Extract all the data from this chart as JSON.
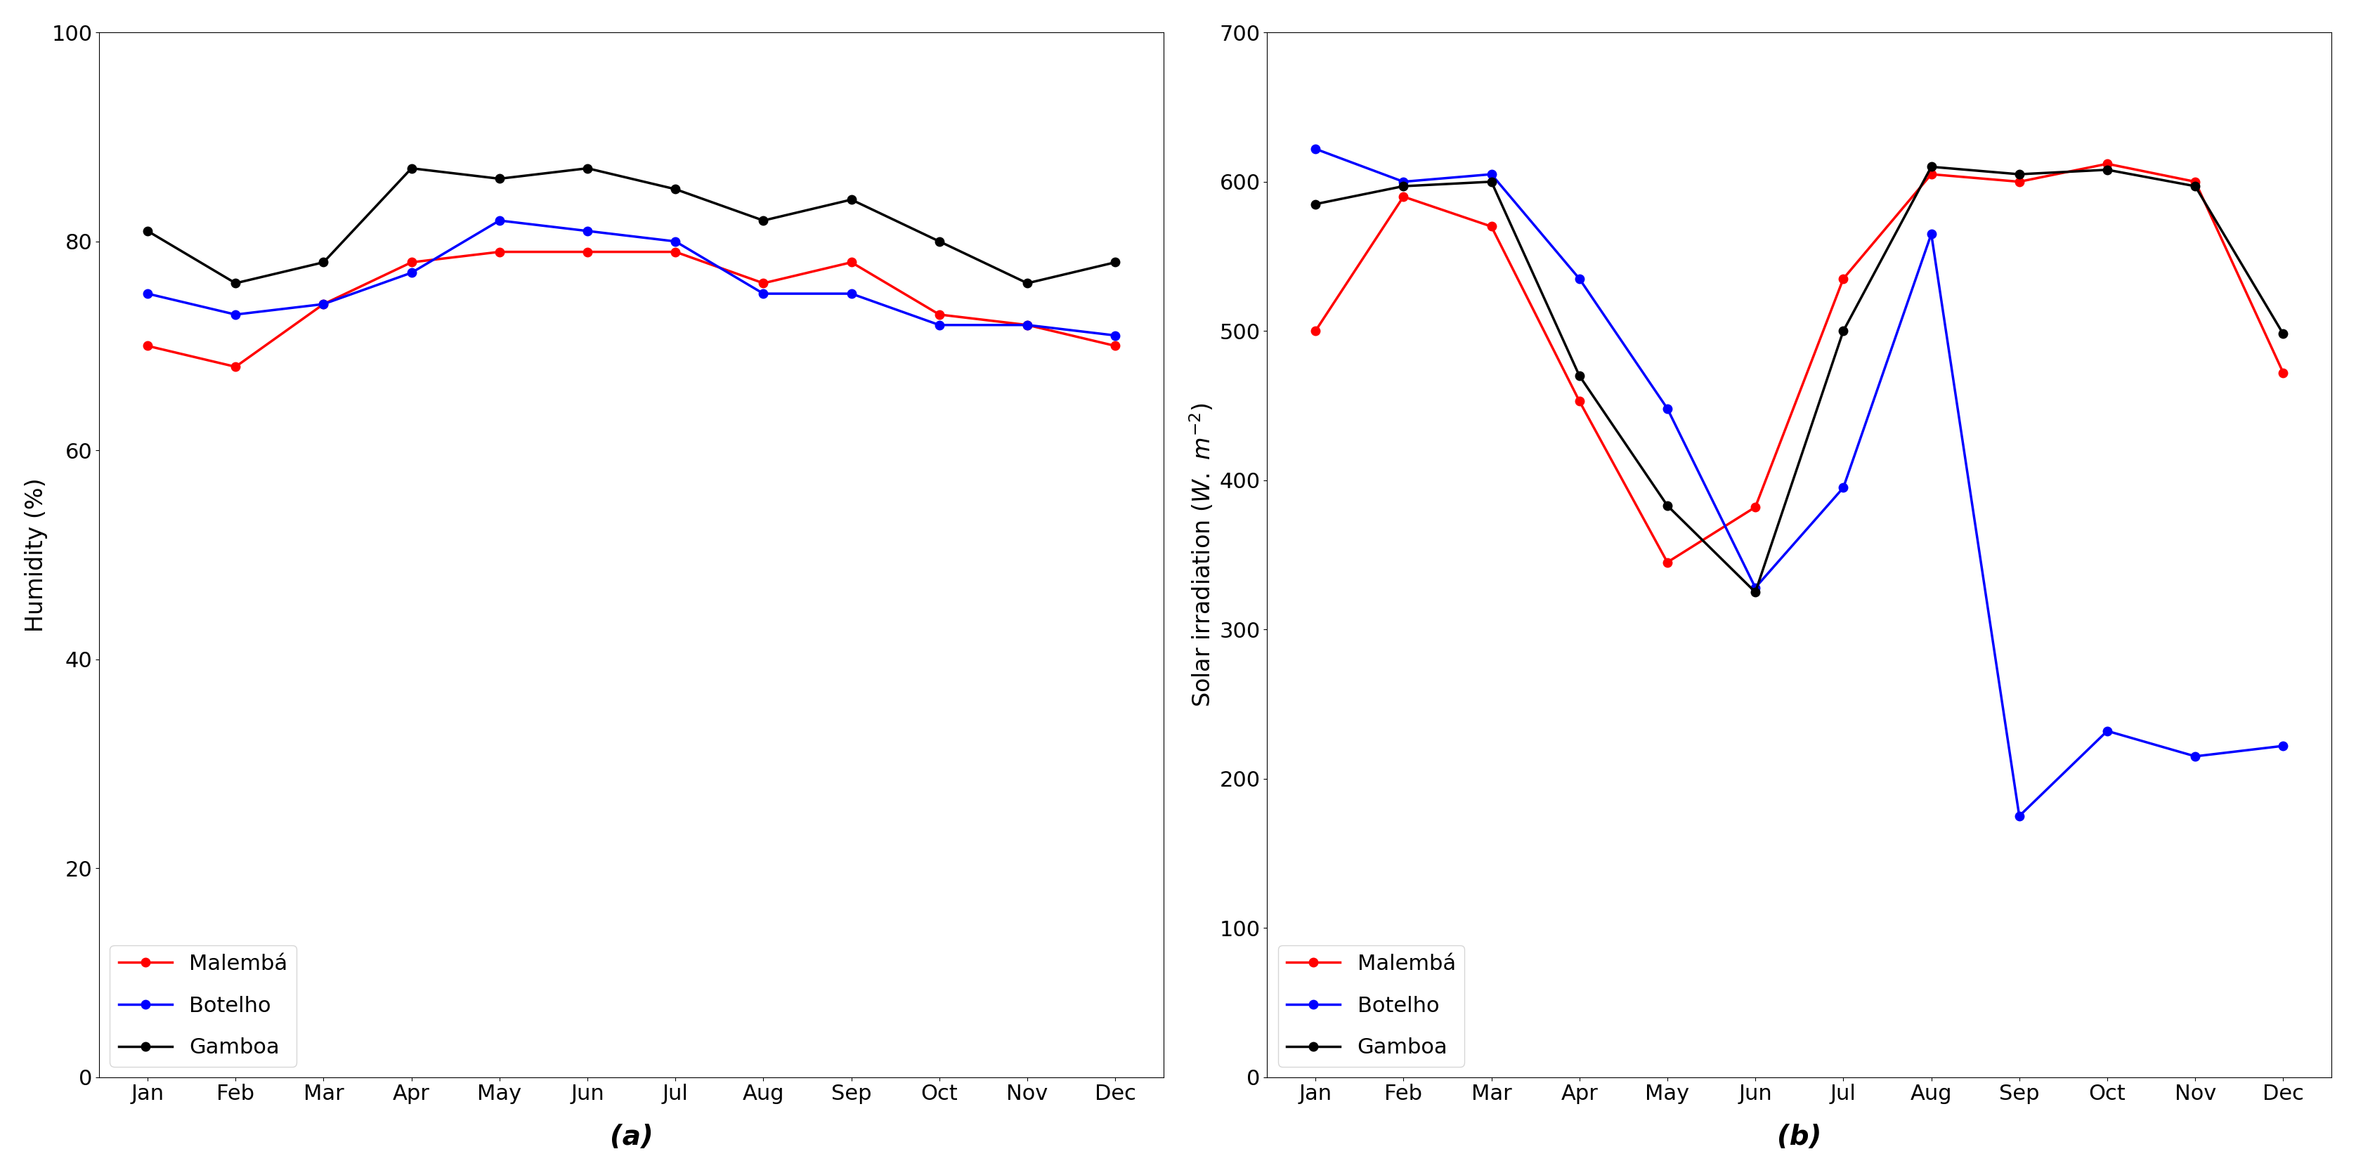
{
  "months": [
    "Jan",
    "Feb",
    "Mar",
    "Apr",
    "May",
    "Jun",
    "Jul",
    "Aug",
    "Sep",
    "Oct",
    "Nov",
    "Dec"
  ],
  "humidity": {
    "Malembá": [
      70,
      68,
      74,
      78,
      79,
      79,
      79,
      76,
      78,
      73,
      72,
      70
    ],
    "Botelho": [
      75,
      73,
      74,
      77,
      82,
      81,
      80,
      75,
      75,
      72,
      72,
      71
    ],
    "Gamboa": [
      81,
      76,
      78,
      87,
      86,
      87,
      85,
      82,
      84,
      80,
      76,
      78
    ]
  },
  "solar": {
    "Malembá": [
      500,
      590,
      570,
      453,
      345,
      382,
      535,
      605,
      600,
      612,
      600,
      472
    ],
    "Botelho": [
      622,
      600,
      605,
      535,
      448,
      328,
      395,
      565,
      175,
      232,
      215,
      222
    ],
    "Gamboa": [
      585,
      597,
      600,
      470,
      383,
      325,
      500,
      610,
      605,
      608,
      597,
      498
    ]
  },
  "colors": {
    "Malembá": "#ff0000",
    "Botelho": "#0000ff",
    "Gamboa": "#000000"
  },
  "humidity_ylabel": "Humidity (%)",
  "solar_ylabel": "Solar irradiation $(W.\\ m^{-2})$",
  "humidity_ylim": [
    0,
    100
  ],
  "solar_ylim": [
    0,
    700
  ],
  "humidity_yticks": [
    0,
    20,
    40,
    60,
    80,
    100
  ],
  "solar_yticks": [
    0,
    100,
    200,
    300,
    400,
    500,
    600,
    700
  ],
  "label_a": "(a)",
  "label_b": "(b)",
  "legend_labels": [
    "Malembá",
    "Botelho",
    "Gamboa"
  ],
  "marker": "o",
  "linewidth": 2.5,
  "markersize": 9,
  "fontsize_tick": 22,
  "fontsize_label": 24,
  "fontsize_legend": 22,
  "fontsize_sublabel": 28,
  "legend_labelspacing": 1.0,
  "legend_handlelength": 2.5
}
